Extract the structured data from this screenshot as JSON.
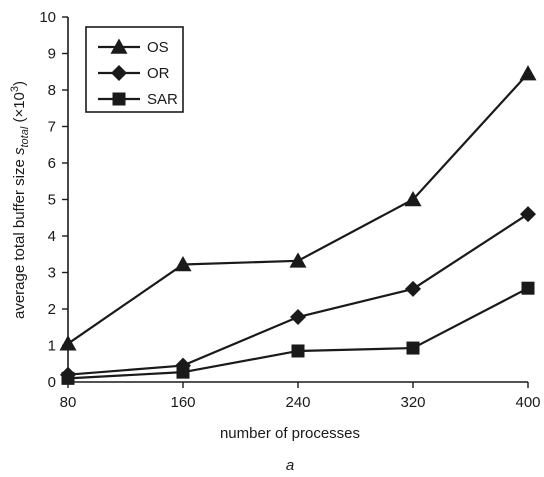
{
  "chart_data": {
    "type": "line",
    "x": [
      80,
      160,
      240,
      320,
      400
    ],
    "xlim": [
      80,
      400
    ],
    "ylim": [
      0,
      10
    ],
    "xticks": [
      "80",
      "160",
      "240",
      "320",
      "400"
    ],
    "yticks": [
      "0",
      "1",
      "2",
      "3",
      "4",
      "5",
      "6",
      "7",
      "8",
      "9",
      "10"
    ],
    "xlabel": "number of processes",
    "ylabel": {
      "prefix": "average total buffer size ",
      "symbol": "s",
      "subscript": "total",
      "unit_open": " (×10",
      "unit_exp": "3",
      "unit_close": ")"
    },
    "caption": "a",
    "grid": false,
    "legend_position": "top-left",
    "series": [
      {
        "name": "OS",
        "marker": "triangle",
        "values": [
          1.05,
          3.22,
          3.32,
          5.0,
          8.45
        ]
      },
      {
        "name": "OR",
        "marker": "diamond",
        "values": [
          0.2,
          0.45,
          1.78,
          2.55,
          4.6
        ]
      },
      {
        "name": "SAR",
        "marker": "square",
        "values": [
          0.1,
          0.27,
          0.85,
          0.93,
          2.57
        ]
      }
    ],
    "color": "#1a1a1a"
  }
}
